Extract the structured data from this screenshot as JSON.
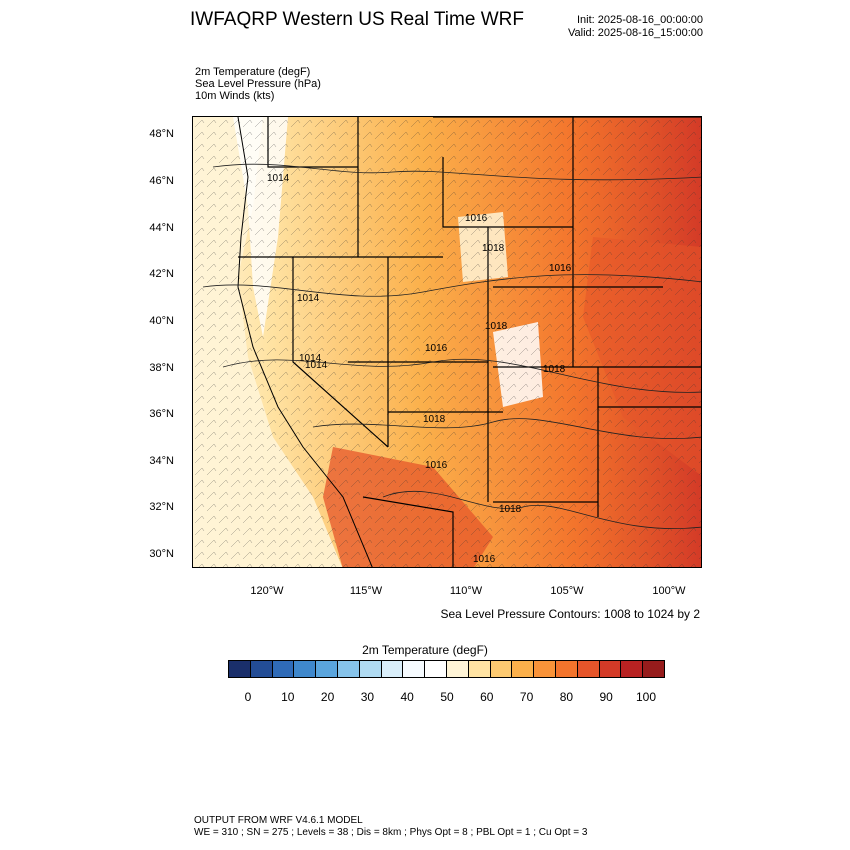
{
  "title": "IWFAQRP Western US Real Time WRF",
  "init": "Init: 2025-08-16_00:00:00",
  "valid": "Valid: 2025-08-16_15:00:00",
  "fields": [
    "2m Temperature   (degF)",
    "Sea Level Pressure   (hPa)",
    "10m Winds   (kts)"
  ],
  "lat_labels": [
    "48°N",
    "46°N",
    "44°N",
    "42°N",
    "40°N",
    "38°N",
    "36°N",
    "34°N",
    "32°N",
    "30°N"
  ],
  "lon_labels": [
    "120°W",
    "115°W",
    "110°W",
    "105°W",
    "100°W"
  ],
  "contour_note": "Sea Level Pressure Contours: 1008 to 1024 by 2",
  "pressure_labels": [
    "1014",
    "1014",
    "1014",
    "1016",
    "1018",
    "1016",
    "1018",
    "1016",
    "1014",
    "1018",
    "1018",
    "1016",
    "1018",
    "1016"
  ],
  "colorbar": {
    "title": "2m Temperature  (degF)",
    "ticks": [
      "0",
      "10",
      "20",
      "30",
      "40",
      "50",
      "60",
      "70",
      "80",
      "90",
      "100"
    ],
    "colors": [
      "#1a2f6b",
      "#234d96",
      "#2f6bb8",
      "#3f88cc",
      "#5aa5dd",
      "#86c3ea",
      "#b0dbf2",
      "#d9eefa",
      "#f6fbff",
      "#ffffff",
      "#fff4d6",
      "#ffe3a3",
      "#fdca71",
      "#fbb04b",
      "#f99339",
      "#f3742c",
      "#e6552a",
      "#d33a27",
      "#b82222",
      "#961c1c"
    ]
  },
  "footer": [
    "OUTPUT FROM WRF V4.6.1 MODEL",
    "WE = 310 ; SN = 275 ; Levels = 38 ; Dis = 8km ; Phys Opt = 8 ; PBL Opt = 1 ; Cu Opt = 3"
  ]
}
